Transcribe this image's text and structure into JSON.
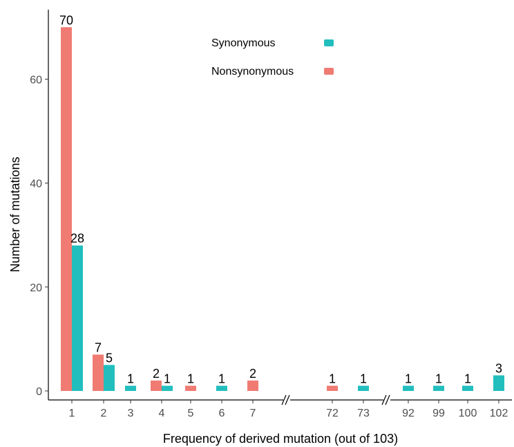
{
  "chart_data": {
    "type": "bar",
    "xlabel": "Frequency of derived mutation (out of 103)",
    "ylabel": "Number of mutations",
    "ylim": [
      0,
      72
    ],
    "yticks": [
      0,
      20,
      40,
      60
    ],
    "grid": false,
    "legend_position": "top-center",
    "x_axis_breaks_after": [
      "7",
      "73"
    ],
    "categories": [
      "1",
      "2",
      "3",
      "4",
      "5",
      "6",
      "7",
      "72",
      "73",
      "92",
      "99",
      "100",
      "102"
    ],
    "series": [
      {
        "name": "Nonsynonymous",
        "color": "#F07B72",
        "values": [
          70,
          7,
          null,
          2,
          1,
          null,
          2,
          1,
          null,
          null,
          null,
          null,
          null
        ]
      },
      {
        "name": "Synonymous",
        "color": "#22BEBE",
        "values": [
          28,
          5,
          1,
          1,
          null,
          1,
          null,
          null,
          1,
          1,
          1,
          1,
          3
        ]
      }
    ],
    "legend_order": [
      "Synonymous",
      "Nonsynonymous"
    ]
  }
}
